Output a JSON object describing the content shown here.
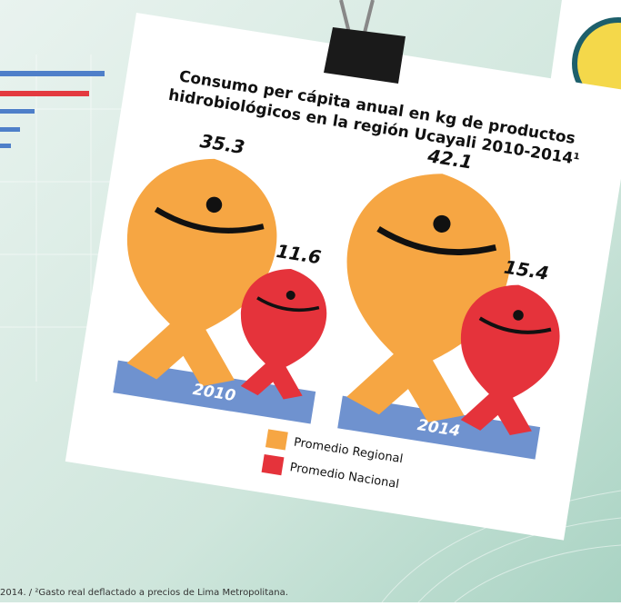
{
  "chart_data": {
    "type": "pictorial",
    "title": [
      "Consumo per cápita anual en kg de productos",
      "hidrobiológicos en la región Ucayali 2010-2014¹"
    ],
    "categories": [
      "2010",
      "2014"
    ],
    "series": [
      {
        "name": "Promedio Regional",
        "color": "#f6a643",
        "values": [
          35.3,
          42.1
        ]
      },
      {
        "name": "Promedio Nacional",
        "color": "#e5333b",
        "values": [
          11.6,
          15.4
        ]
      }
    ],
    "footnote": "2014. / ²Gasto real deflactado a precios de Lima Metropolitana."
  }
}
